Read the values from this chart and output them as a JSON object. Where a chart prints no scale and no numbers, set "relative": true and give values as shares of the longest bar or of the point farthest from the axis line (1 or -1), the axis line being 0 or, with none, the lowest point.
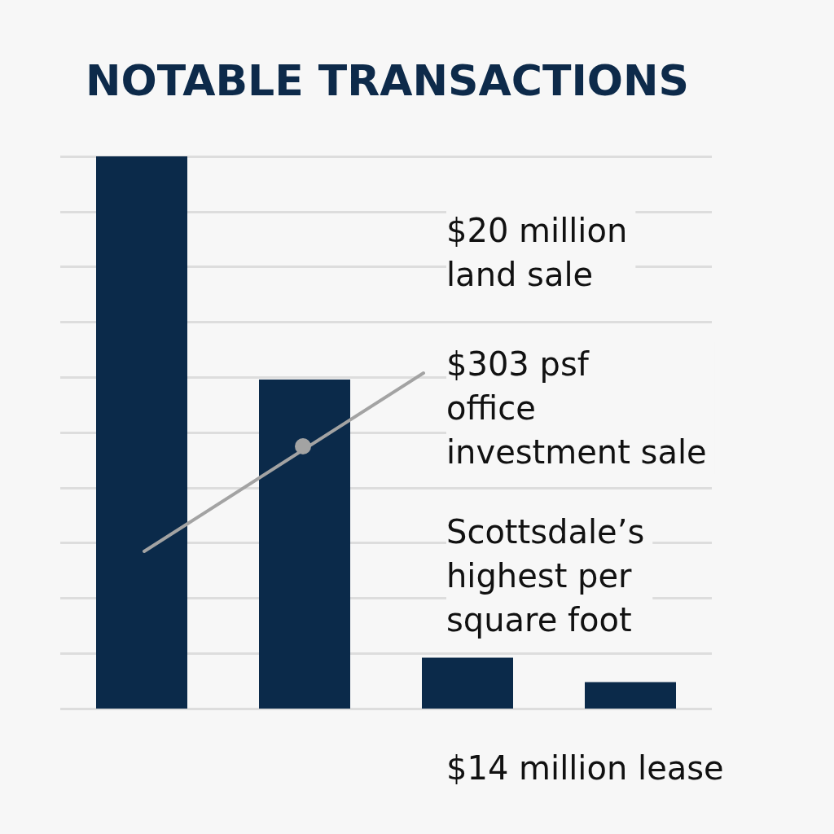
{
  "chart_data": {
    "type": "bar",
    "title": "NOTABLE TRANSACTIONS",
    "relative": true,
    "grid": "y",
    "categories": [
      null,
      null,
      null,
      null
    ],
    "series": [
      {
        "color": "#0b2a4a",
        "values": [
          1,
          0.596,
          0.092,
          0.048
        ]
      }
    ],
    "annotations": [
      "$20 million\nland sale",
      "$303 psf\noffice\ninvestment sale",
      "Scottsdale’s\nhighest per\nsquare foot",
      "$14 million lease"
    ]
  }
}
